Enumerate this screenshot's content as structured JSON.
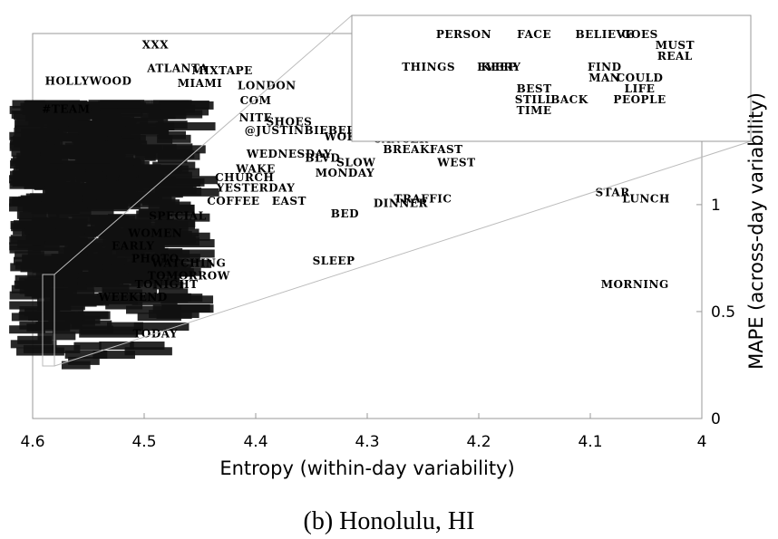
{
  "chart_data": {
    "type": "scatter",
    "title": "",
    "caption": "(b) Honolulu, HI",
    "xlabel": "Entropy (within-day variability)",
    "ylabel": "MAPE (across-day variability)",
    "xlim": [
      4.6,
      4.0
    ],
    "ylim": [
      0,
      1.8
    ],
    "x_ticks": [
      "4.6",
      "4.5",
      "4.4",
      "4.3",
      "4.2",
      "4.1",
      "4"
    ],
    "y_ticks": [
      "0",
      "0.5",
      "1"
    ],
    "grid": false,
    "legend": "none",
    "points": [
      {
        "label": "XXX",
        "x": 4.49,
        "y": 1.73
      },
      {
        "label": "ATLANTA",
        "x": 4.47,
        "y": 1.62
      },
      {
        "label": "MIXTAPE",
        "x": 4.43,
        "y": 1.61
      },
      {
        "label": "HOLLYWOOD",
        "x": 4.55,
        "y": 1.56
      },
      {
        "label": "MIAMI",
        "x": 4.45,
        "y": 1.55
      },
      {
        "label": "LONDON",
        "x": 4.39,
        "y": 1.54
      },
      {
        "label": "COM",
        "x": 4.4,
        "y": 1.47
      },
      {
        "label": "#TEAM",
        "x": 4.57,
        "y": 1.43
      },
      {
        "label": "NITE",
        "x": 4.4,
        "y": 1.39
      },
      {
        "label": "SHOES",
        "x": 4.37,
        "y": 1.37
      },
      {
        "label": "@JUSTINBIEBER",
        "x": 4.36,
        "y": 1.33
      },
      {
        "label": "WOKE",
        "x": 4.32,
        "y": 1.3
      },
      {
        "label": "CANCER",
        "x": 4.27,
        "y": 1.29
      },
      {
        "label": "BREAKFAST",
        "x": 4.25,
        "y": 1.24
      },
      {
        "label": "WEDNESDAY",
        "x": 4.37,
        "y": 1.22
      },
      {
        "label": "BLVD",
        "x": 4.34,
        "y": 1.2
      },
      {
        "label": "SLOW",
        "x": 4.31,
        "y": 1.18
      },
      {
        "label": "WEST",
        "x": 4.22,
        "y": 1.18
      },
      {
        "label": "MONDAY",
        "x": 4.32,
        "y": 1.13
      },
      {
        "label": "WAKE",
        "x": 4.4,
        "y": 1.15
      },
      {
        "label": "CHURCH",
        "x": 4.41,
        "y": 1.11
      },
      {
        "label": "YESTERDAY",
        "x": 4.4,
        "y": 1.06
      },
      {
        "label": "COFFEE",
        "x": 4.42,
        "y": 1.0
      },
      {
        "label": "EAST",
        "x": 4.37,
        "y": 1.0
      },
      {
        "label": "TRAFFIC",
        "x": 4.25,
        "y": 1.01
      },
      {
        "label": "DINNER",
        "x": 4.27,
        "y": 0.99
      },
      {
        "label": "STAR",
        "x": 4.08,
        "y": 1.04
      },
      {
        "label": "LUNCH",
        "x": 4.05,
        "y": 1.01
      },
      {
        "label": "BED",
        "x": 4.32,
        "y": 0.94
      },
      {
        "label": "SPECIAL",
        "x": 4.47,
        "y": 0.93
      },
      {
        "label": "WOMEN",
        "x": 4.49,
        "y": 0.85
      },
      {
        "label": "EARLY",
        "x": 4.51,
        "y": 0.79
      },
      {
        "label": "PHOTO",
        "x": 4.49,
        "y": 0.73
      },
      {
        "label": "WATCHING",
        "x": 4.46,
        "y": 0.71
      },
      {
        "label": "SLEEP",
        "x": 4.33,
        "y": 0.72
      },
      {
        "label": "TOMORROW",
        "x": 4.46,
        "y": 0.65
      },
      {
        "label": "TONIGHT",
        "x": 4.48,
        "y": 0.61
      },
      {
        "label": "WEEKEND",
        "x": 4.51,
        "y": 0.55
      },
      {
        "label": "MORNING",
        "x": 4.06,
        "y": 0.61
      },
      {
        "label": "TODAY",
        "x": 4.49,
        "y": 0.38
      },
      {
        "label": "PERSON",
        "x": 4.585,
        "y": 0.79
      },
      {
        "label": "FACE",
        "x": 4.583,
        "y": 0.79
      },
      {
        "label": "BELIEVE",
        "x": 4.581,
        "y": 0.79
      },
      {
        "label": "GOES",
        "x": 4.58,
        "y": 0.79
      },
      {
        "label": "MUST",
        "x": 4.579,
        "y": 0.78
      },
      {
        "label": "REAL",
        "x": 4.579,
        "y": 0.77
      },
      {
        "label": "THINGS",
        "x": 4.586,
        "y": 0.76
      },
      {
        "label": "EVERY",
        "x": 4.584,
        "y": 0.76
      },
      {
        "label": "KEEP",
        "x": 4.584,
        "y": 0.76
      },
      {
        "label": "FIND",
        "x": 4.581,
        "y": 0.76
      },
      {
        "label": "COULD",
        "x": 4.58,
        "y": 0.75
      },
      {
        "label": "MAN",
        "x": 4.581,
        "y": 0.75
      },
      {
        "label": "LIFE",
        "x": 4.58,
        "y": 0.74
      },
      {
        "label": "BEST",
        "x": 4.583,
        "y": 0.74
      },
      {
        "label": "STILL",
        "x": 4.583,
        "y": 0.73
      },
      {
        "label": "BACK",
        "x": 4.582,
        "y": 0.73
      },
      {
        "label": "PEOPLE",
        "x": 4.58,
        "y": 0.73
      },
      {
        "label": "TIME",
        "x": 4.583,
        "y": 0.72
      }
    ],
    "inset": {
      "xlim": [
        4.588,
        4.577
      ],
      "ylim": [
        0.7,
        0.8
      ]
    }
  }
}
